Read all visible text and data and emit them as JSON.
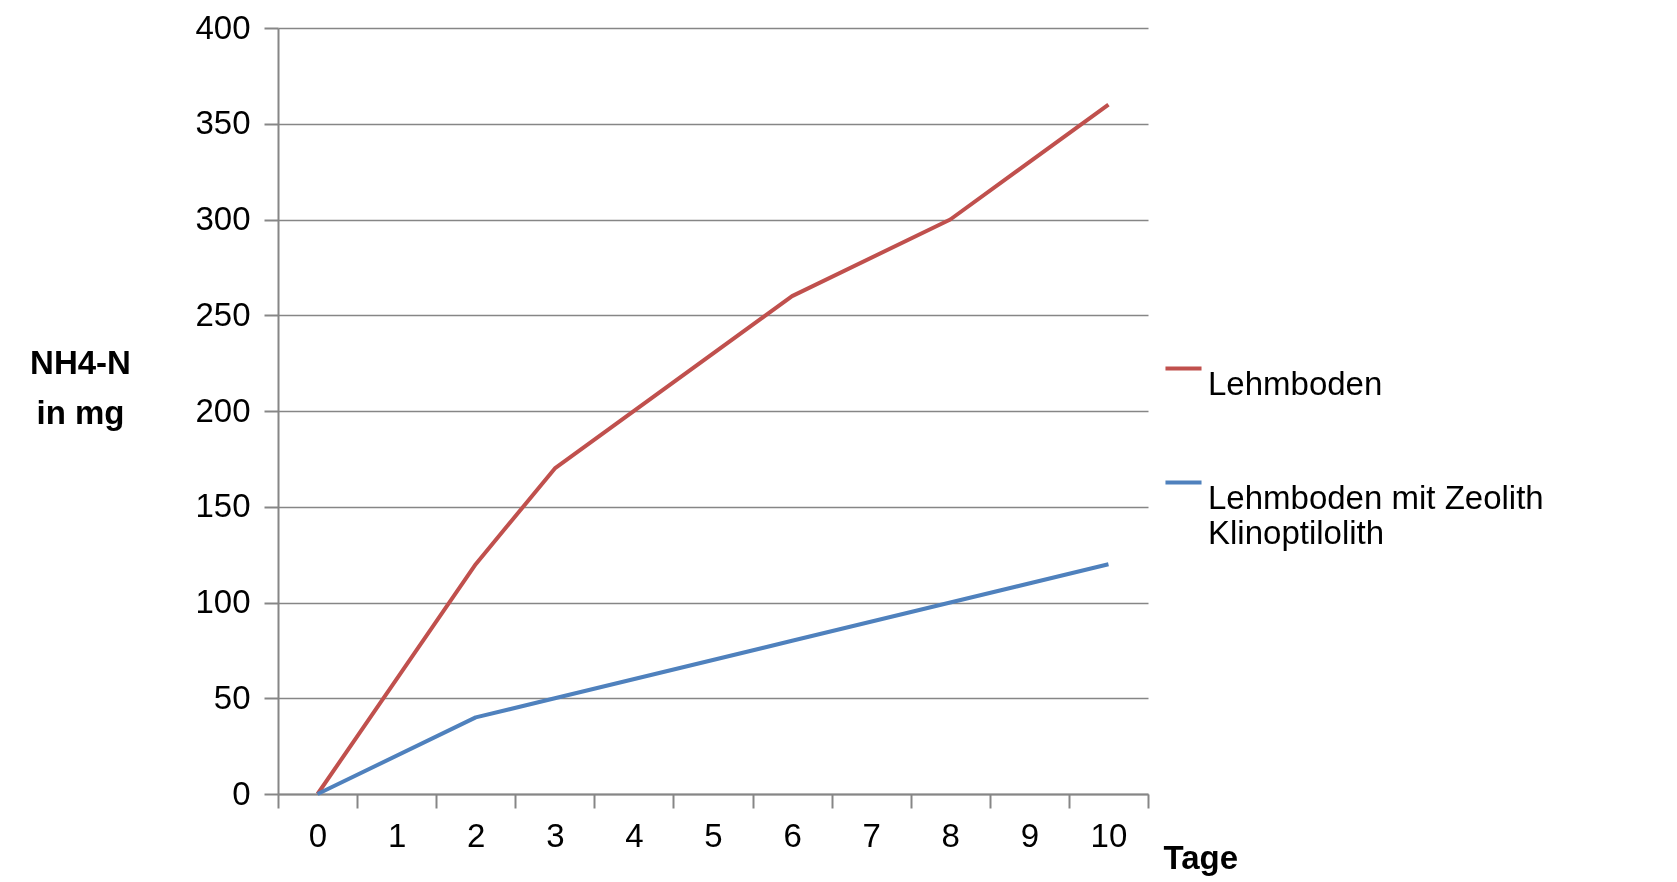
{
  "chart_data": {
    "type": "line",
    "xlabel": "Tage",
    "ylabel": "NH4-N in mg",
    "categories": [
      "0",
      "1",
      "2",
      "3",
      "4",
      "5",
      "6",
      "7",
      "8",
      "9",
      "10"
    ],
    "series": [
      {
        "name": "Lehmboden",
        "color": "#c0504d",
        "values": [
          0,
          null,
          120,
          170,
          null,
          null,
          260,
          null,
          300,
          null,
          360
        ]
      },
      {
        "name": "Lehmboden mit Zeolith Klinoptilolith",
        "color": "#4f81bd",
        "values": [
          0,
          null,
          40,
          50,
          null,
          null,
          80,
          null,
          100,
          null,
          120
        ]
      }
    ],
    "ylim": [
      0,
      400
    ],
    "yticks": [
      0,
      50,
      100,
      150,
      200,
      250,
      300,
      350,
      400
    ],
    "grid": "y",
    "legend": "right",
    "marker": "none",
    "line_style": "solid"
  }
}
